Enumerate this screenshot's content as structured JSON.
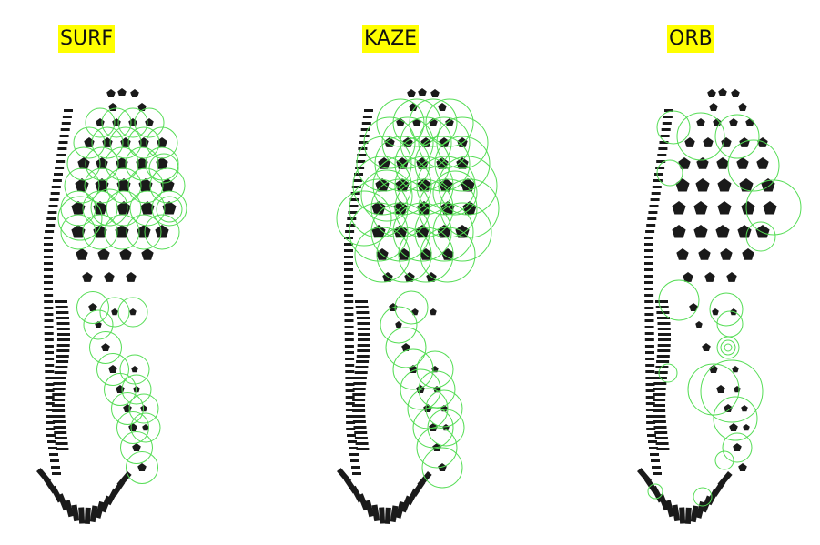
{
  "panels": [
    {
      "label": "SURF"
    },
    {
      "label": "KAZE"
    },
    {
      "label": "ORB"
    }
  ],
  "colors": {
    "background": "#ffffff",
    "label_bg": "#ffff00",
    "tread": "#1a1a1a",
    "keypoint": "#55dd55"
  },
  "icons": [
    "shoe-sole-print",
    "keypoint-circle"
  ]
}
